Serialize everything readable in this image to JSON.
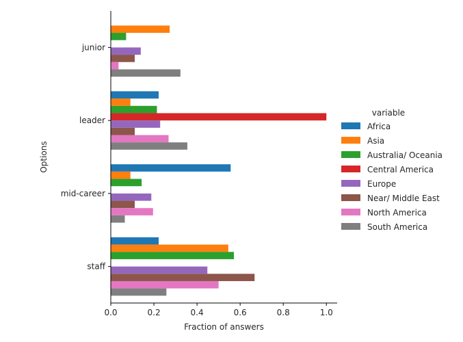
{
  "chart_data": {
    "type": "bar",
    "orientation": "horizontal",
    "categories": [
      "junior",
      "leader",
      "mid-career",
      "staff"
    ],
    "xlabel": "Fraction of answers",
    "ylabel": "Options",
    "xlim": [
      0,
      1.05
    ],
    "xticks": [
      0.0,
      0.2,
      0.4,
      0.6,
      0.8,
      1.0
    ],
    "xtick_labels": [
      "0.0",
      "0.2",
      "0.4",
      "0.6",
      "0.8",
      "1.0"
    ],
    "grid": false,
    "legend": {
      "title": "variable",
      "placement": "right"
    },
    "series": [
      {
        "name": "Africa",
        "color": "#1f77b4",
        "values": [
          0,
          0.222,
          0.556,
          0.222
        ]
      },
      {
        "name": "Asia",
        "color": "#ff7f0e",
        "values": [
          0.273,
          0.091,
          0.091,
          0.545
        ]
      },
      {
        "name": "Australia/ Oceania",
        "color": "#2ca02c",
        "values": [
          0.071,
          0.214,
          0.143,
          0.571
        ]
      },
      {
        "name": "Central America",
        "color": "#d62728",
        "values": [
          0,
          1.0,
          0,
          0
        ]
      },
      {
        "name": "Europe",
        "color": "#9467bd",
        "values": [
          0.139,
          0.229,
          0.188,
          0.448
        ]
      },
      {
        "name": "Near/ Middle East",
        "color": "#8c564b",
        "values": [
          0.111,
          0.111,
          0.111,
          0.667
        ]
      },
      {
        "name": "North America",
        "color": "#e377c2",
        "values": [
          0.036,
          0.268,
          0.196,
          0.5
        ]
      },
      {
        "name": "South America",
        "color": "#7f7f7f",
        "values": [
          0.323,
          0.355,
          0.065,
          0.258
        ]
      }
    ]
  }
}
